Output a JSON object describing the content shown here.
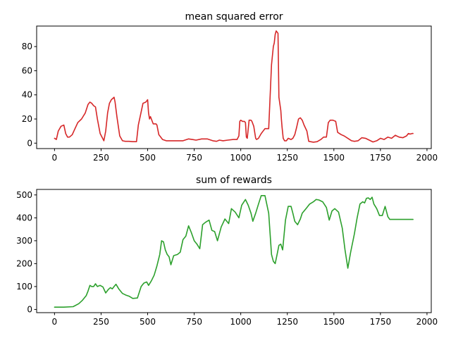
{
  "chart_data": [
    {
      "type": "line",
      "title": "mean squared error",
      "xlabel": "",
      "ylabel": "",
      "xlim": [
        -96,
        2023
      ],
      "ylim": [
        -4.5,
        97
      ],
      "xticks": [
        0,
        250,
        500,
        750,
        1000,
        1250,
        1500,
        1750,
        2000
      ],
      "yticks": [
        0,
        20,
        40,
        60,
        80
      ],
      "grid": false,
      "color": "#d62728",
      "series": [
        {
          "x": [
            0,
            10,
            20,
            35,
            50,
            60,
            70,
            80,
            95,
            110,
            125,
            145,
            165,
            180,
            190,
            200,
            210,
            220,
            230,
            245,
            265,
            275,
            285,
            295,
            305,
            320,
            325,
            335,
            350,
            365,
            380,
            400,
            420,
            440,
            450,
            460,
            475,
            490,
            495,
            500,
            505,
            510,
            515,
            530,
            545,
            550,
            560,
            580,
            600,
            630,
            660,
            690,
            720,
            740,
            760,
            790,
            820,
            850,
            870,
            885,
            905,
            930,
            960,
            980,
            990,
            995,
            1000,
            1010,
            1020,
            1025,
            1030,
            1035,
            1045,
            1055,
            1060,
            1070,
            1080,
            1085,
            1095,
            1110,
            1130,
            1150,
            1165,
            1175,
            1180,
            1185,
            1190,
            1195,
            1200,
            1205,
            1215,
            1218,
            1222,
            1228,
            1235,
            1245,
            1255,
            1270,
            1280,
            1290,
            1300,
            1310,
            1320,
            1330,
            1340,
            1355,
            1365,
            1375,
            1390,
            1410,
            1430,
            1445,
            1460,
            1470,
            1480,
            1495,
            1510,
            1520,
            1540,
            1555,
            1575,
            1595,
            1610,
            1630,
            1650,
            1670,
            1690,
            1710,
            1730,
            1750,
            1770,
            1790,
            1810,
            1830,
            1850,
            1870,
            1890,
            1900,
            1910,
            1920,
            1925
          ],
          "y": [
            4,
            3,
            10,
            14,
            15,
            8,
            5,
            5,
            7,
            12,
            17,
            20,
            25,
            32,
            34,
            33,
            31,
            30,
            20,
            8,
            2,
            10,
            25,
            33,
            36,
            38,
            34,
            22,
            6,
            2,
            1.5,
            1.5,
            1.2,
            1.2,
            15,
            22,
            33,
            34,
            35,
            36,
            25,
            20,
            22,
            16,
            16,
            15,
            7,
            3,
            2,
            2,
            2,
            2,
            3.5,
            3,
            2.5,
            3.5,
            3.5,
            2,
            1.5,
            2.5,
            2,
            2.5,
            3,
            3,
            6,
            18,
            19,
            18,
            18,
            17,
            5,
            4,
            19,
            19,
            18,
            14,
            4,
            3,
            4,
            8,
            12,
            12,
            65,
            80,
            83,
            90,
            93,
            92,
            91,
            38,
            27,
            20,
            13,
            4,
            2,
            2,
            4,
            3,
            4,
            7,
            13,
            20,
            21,
            19,
            15,
            10,
            1.5,
            1.2,
            0.8,
            1.2,
            3,
            5,
            5,
            17,
            19,
            19,
            18,
            9,
            7,
            6,
            4,
            2,
            1.5,
            2,
            4.5,
            4,
            2.5,
            1,
            2,
            4,
            3,
            5,
            4,
            6.5,
            5,
            4.5,
            6,
            8,
            7.5,
            8,
            8
          ]
        }
      ]
    },
    {
      "type": "line",
      "title": "sum of rewards",
      "xlabel": "",
      "ylabel": "",
      "xlim": [
        -96,
        2023
      ],
      "ylim": [
        -14,
        524
      ],
      "xticks": [
        0,
        250,
        500,
        750,
        1000,
        1250,
        1500,
        1750,
        2000
      ],
      "yticks": [
        0,
        100,
        200,
        300,
        400,
        500
      ],
      "grid": false,
      "color": "#2ca02c",
      "series": [
        {
          "x": [
            0,
            50,
            100,
            130,
            150,
            170,
            180,
            190,
            200,
            210,
            220,
            230,
            245,
            260,
            275,
            290,
            300,
            310,
            320,
            330,
            345,
            365,
            385,
            400,
            420,
            445,
            465,
            480,
            495,
            505,
            520,
            535,
            550,
            565,
            575,
            585,
            595,
            605,
            615,
            625,
            640,
            660,
            675,
            690,
            705,
            720,
            735,
            750,
            765,
            780,
            795,
            810,
            830,
            845,
            860,
            875,
            895,
            915,
            935,
            950,
            970,
            990,
            1005,
            1025,
            1040,
            1055,
            1065,
            1080,
            1095,
            1110,
            1130,
            1150,
            1165,
            1175,
            1185,
            1195,
            1205,
            1215,
            1225,
            1240,
            1255,
            1270,
            1280,
            1290,
            1305,
            1320,
            1330,
            1340,
            1355,
            1370,
            1390,
            1405,
            1420,
            1440,
            1460,
            1475,
            1490,
            1505,
            1525,
            1545,
            1560,
            1575,
            1590,
            1610,
            1625,
            1640,
            1655,
            1665,
            1675,
            1685,
            1695,
            1705,
            1715,
            1730,
            1745,
            1760,
            1775,
            1790,
            1800,
            1810,
            1825,
            1835,
            1845,
            1860,
            1875,
            1885,
            1895,
            1905,
            1915,
            1925
          ],
          "y": [
            10,
            10,
            12,
            25,
            40,
            60,
            80,
            105,
            100,
            100,
            112,
            100,
            105,
            98,
            72,
            88,
            95,
            90,
            100,
            110,
            90,
            70,
            62,
            58,
            48,
            50,
            100,
            115,
            120,
            105,
            125,
            150,
            190,
            240,
            300,
            295,
            260,
            240,
            230,
            195,
            235,
            240,
            250,
            305,
            320,
            365,
            335,
            300,
            285,
            265,
            370,
            380,
            390,
            345,
            340,
            300,
            360,
            395,
            375,
            440,
            425,
            400,
            455,
            480,
            455,
            420,
            385,
            420,
            460,
            497,
            497,
            420,
            240,
            210,
            200,
            240,
            280,
            285,
            260,
            390,
            450,
            450,
            420,
            385,
            370,
            395,
            420,
            430,
            445,
            460,
            470,
            480,
            478,
            470,
            445,
            390,
            430,
            440,
            425,
            355,
            260,
            180,
            250,
            330,
            400,
            460,
            470,
            465,
            485,
            487,
            480,
            490,
            460,
            440,
            410,
            410,
            450,
            405,
            393,
            393,
            393,
            393,
            393,
            393,
            393,
            393,
            393,
            393,
            393,
            393
          ]
        }
      ]
    }
  ]
}
